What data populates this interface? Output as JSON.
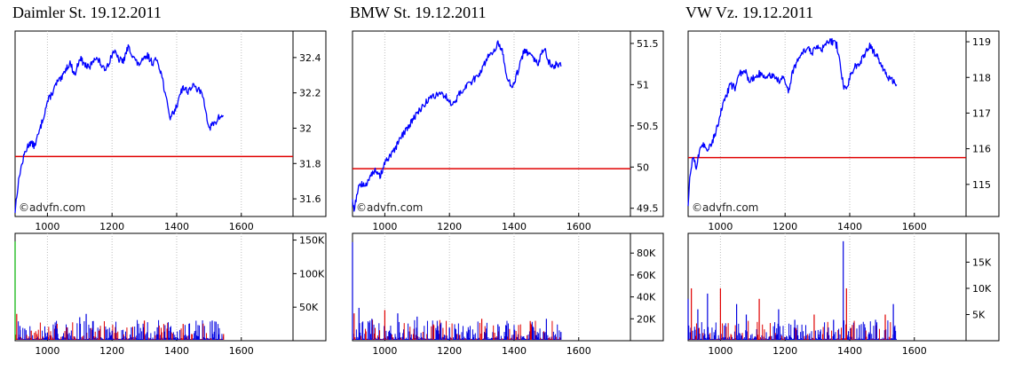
{
  "colors": {
    "price": "#0000ff",
    "reference": "#e00000",
    "vol_up": "#0000e0",
    "vol_down": "#e00000",
    "vol_first": "#00b000",
    "frame": "#000000",
    "grid": "#bdbdbd"
  },
  "watermark": "©advfn.com",
  "x_ticks": [
    "1000",
    "1200",
    "1400",
    "1600"
  ],
  "chart_data": [
    {
      "type": "line",
      "title": "Daimler St. 19.12.2011",
      "x_domain": [
        900,
        1760
      ],
      "price": {
        "y_ticks": [
          "32.4",
          "32.2",
          "32",
          "31.8",
          "31.6"
        ],
        "ylim": [
          31.5,
          32.55
        ],
        "reference": 31.84,
        "keypoints": [
          [
            900,
            31.53
          ],
          [
            905,
            31.62
          ],
          [
            915,
            31.75
          ],
          [
            930,
            31.86
          ],
          [
            945,
            31.92
          ],
          [
            960,
            31.9
          ],
          [
            975,
            31.98
          ],
          [
            990,
            32.08
          ],
          [
            1000,
            32.15
          ],
          [
            1015,
            32.2
          ],
          [
            1030,
            32.26
          ],
          [
            1045,
            32.28
          ],
          [
            1055,
            32.33
          ],
          [
            1070,
            32.37
          ],
          [
            1085,
            32.3
          ],
          [
            1100,
            32.4
          ],
          [
            1115,
            32.36
          ],
          [
            1130,
            32.34
          ],
          [
            1145,
            32.4
          ],
          [
            1160,
            32.38
          ],
          [
            1175,
            32.33
          ],
          [
            1190,
            32.37
          ],
          [
            1205,
            32.44
          ],
          [
            1220,
            32.39
          ],
          [
            1235,
            32.38
          ],
          [
            1250,
            32.46
          ],
          [
            1265,
            32.41
          ],
          [
            1280,
            32.36
          ],
          [
            1295,
            32.38
          ],
          [
            1310,
            32.41
          ],
          [
            1325,
            32.37
          ],
          [
            1340,
            32.39
          ],
          [
            1355,
            32.29
          ],
          [
            1370,
            32.14
          ],
          [
            1380,
            32.06
          ],
          [
            1390,
            32.09
          ],
          [
            1400,
            32.12
          ],
          [
            1410,
            32.2
          ],
          [
            1420,
            32.23
          ],
          [
            1435,
            32.21
          ],
          [
            1450,
            32.24
          ],
          [
            1465,
            32.22
          ],
          [
            1480,
            32.19
          ],
          [
            1490,
            32.11
          ],
          [
            1500,
            31.99
          ],
          [
            1510,
            32.02
          ],
          [
            1520,
            32.03
          ],
          [
            1530,
            32.06
          ],
          [
            1545,
            32.07
          ]
        ]
      },
      "volume": {
        "y_ticks": [
          "150K",
          "100K",
          "50K"
        ],
        "ylim": [
          0,
          160000
        ],
        "tick_values": [
          150000,
          100000,
          50000
        ],
        "bars": [
          [
            900,
            148000
          ],
          [
            905,
            40000
          ],
          [
            915,
            22000
          ],
          [
            930,
            18000
          ],
          [
            950,
            15000
          ],
          [
            1000,
            12000
          ],
          [
            1030,
            18000
          ],
          [
            1060,
            20000
          ],
          [
            1100,
            35000
          ],
          [
            1120,
            40000
          ],
          [
            1160,
            15000
          ],
          [
            1200,
            15000
          ],
          [
            1260,
            20000
          ],
          [
            1300,
            30000
          ],
          [
            1340,
            20000
          ],
          [
            1380,
            20000
          ],
          [
            1420,
            25000
          ],
          [
            1460,
            15000
          ],
          [
            1510,
            30000
          ],
          [
            1545,
            10000
          ]
        ]
      }
    },
    {
      "type": "line",
      "title": "BMW St. 19.12.2011",
      "x_domain": [
        900,
        1760
      ],
      "price": {
        "y_ticks": [
          "51.5",
          "51",
          "50.5",
          "50",
          "49.5"
        ],
        "ylim": [
          49.4,
          51.65
        ],
        "reference": 49.98,
        "keypoints": [
          [
            900,
            49.6
          ],
          [
            905,
            49.48
          ],
          [
            915,
            49.7
          ],
          [
            925,
            49.8
          ],
          [
            940,
            49.75
          ],
          [
            955,
            49.92
          ],
          [
            970,
            49.95
          ],
          [
            985,
            49.88
          ],
          [
            1000,
            50.05
          ],
          [
            1015,
            50.12
          ],
          [
            1030,
            50.2
          ],
          [
            1045,
            50.32
          ],
          [
            1060,
            50.42
          ],
          [
            1075,
            50.5
          ],
          [
            1090,
            50.6
          ],
          [
            1110,
            50.7
          ],
          [
            1130,
            50.8
          ],
          [
            1150,
            50.86
          ],
          [
            1170,
            50.9
          ],
          [
            1190,
            50.85
          ],
          [
            1210,
            50.75
          ],
          [
            1230,
            50.88
          ],
          [
            1250,
            50.98
          ],
          [
            1270,
            51.04
          ],
          [
            1290,
            51.12
          ],
          [
            1310,
            51.26
          ],
          [
            1325,
            51.38
          ],
          [
            1340,
            51.42
          ],
          [
            1350,
            51.53
          ],
          [
            1365,
            51.38
          ],
          [
            1378,
            51.1
          ],
          [
            1390,
            50.98
          ],
          [
            1400,
            51.02
          ],
          [
            1415,
            51.2
          ],
          [
            1430,
            51.4
          ],
          [
            1445,
            51.38
          ],
          [
            1460,
            51.3
          ],
          [
            1475,
            51.26
          ],
          [
            1485,
            51.37
          ],
          [
            1495,
            51.44
          ],
          [
            1505,
            51.28
          ],
          [
            1520,
            51.22
          ],
          [
            1535,
            51.26
          ],
          [
            1545,
            51.22
          ]
        ]
      },
      "volume": {
        "y_ticks": [
          "80K",
          "60K",
          "40K",
          "20K"
        ],
        "ylim": [
          0,
          98000
        ],
        "tick_values": [
          80000,
          60000,
          40000,
          20000
        ],
        "bars": [
          [
            900,
            90000
          ],
          [
            905,
            25000
          ],
          [
            920,
            30000
          ],
          [
            960,
            20000
          ],
          [
            1000,
            28000
          ],
          [
            1040,
            25000
          ],
          [
            1100,
            22000
          ],
          [
            1150,
            15000
          ],
          [
            1200,
            12000
          ],
          [
            1260,
            10000
          ],
          [
            1300,
            20000
          ],
          [
            1350,
            15000
          ],
          [
            1400,
            10000
          ],
          [
            1450,
            18000
          ],
          [
            1500,
            20000
          ],
          [
            1545,
            8000
          ]
        ]
      }
    },
    {
      "type": "line",
      "title": "VW Vz. 19.12.2011",
      "x_domain": [
        900,
        1760
      ],
      "price": {
        "y_ticks": [
          "119",
          "118",
          "117",
          "116",
          "115"
        ],
        "ylim": [
          114.1,
          119.3
        ],
        "reference": 115.75,
        "keypoints": [
          [
            900,
            114.3
          ],
          [
            905,
            115.2
          ],
          [
            915,
            115.8
          ],
          [
            925,
            115.5
          ],
          [
            935,
            115.9
          ],
          [
            945,
            116.1
          ],
          [
            960,
            116.0
          ],
          [
            975,
            116.2
          ],
          [
            990,
            116.6
          ],
          [
            1000,
            117.0
          ],
          [
            1015,
            117.4
          ],
          [
            1030,
            117.8
          ],
          [
            1045,
            117.7
          ],
          [
            1060,
            118.1
          ],
          [
            1075,
            118.2
          ],
          [
            1090,
            117.9
          ],
          [
            1105,
            118.0
          ],
          [
            1120,
            118.1
          ],
          [
            1135,
            118.0
          ],
          [
            1150,
            118.1
          ],
          [
            1165,
            118.0
          ],
          [
            1180,
            117.9
          ],
          [
            1195,
            118.0
          ],
          [
            1210,
            117.6
          ],
          [
            1225,
            118.2
          ],
          [
            1240,
            118.5
          ],
          [
            1255,
            118.7
          ],
          [
            1270,
            118.8
          ],
          [
            1285,
            118.7
          ],
          [
            1300,
            118.9
          ],
          [
            1315,
            118.8
          ],
          [
            1330,
            119.0
          ],
          [
            1345,
            119.0
          ],
          [
            1360,
            118.9
          ],
          [
            1370,
            118.4
          ],
          [
            1380,
            117.8
          ],
          [
            1390,
            117.6
          ],
          [
            1400,
            118.0
          ],
          [
            1415,
            118.3
          ],
          [
            1430,
            118.4
          ],
          [
            1445,
            118.6
          ],
          [
            1460,
            118.9
          ],
          [
            1475,
            118.7
          ],
          [
            1490,
            118.5
          ],
          [
            1505,
            118.2
          ],
          [
            1520,
            118.0
          ],
          [
            1535,
            117.9
          ],
          [
            1545,
            117.8
          ]
        ]
      },
      "volume": {
        "y_ticks": [
          "15K",
          "10K",
          "5K"
        ],
        "ylim": [
          0,
          20500
        ],
        "tick_values": [
          15000,
          10000,
          5000
        ],
        "bars": [
          [
            900,
            8000
          ],
          [
            910,
            10000
          ],
          [
            930,
            6000
          ],
          [
            960,
            9000
          ],
          [
            1000,
            10000
          ],
          [
            1050,
            7000
          ],
          [
            1080,
            5000
          ],
          [
            1120,
            8000
          ],
          [
            1180,
            6000
          ],
          [
            1230,
            4000
          ],
          [
            1290,
            5000
          ],
          [
            1350,
            4000
          ],
          [
            1380,
            19000
          ],
          [
            1390,
            10000
          ],
          [
            1430,
            3000
          ],
          [
            1480,
            4000
          ],
          [
            1510,
            5000
          ],
          [
            1535,
            7000
          ]
        ]
      }
    }
  ]
}
